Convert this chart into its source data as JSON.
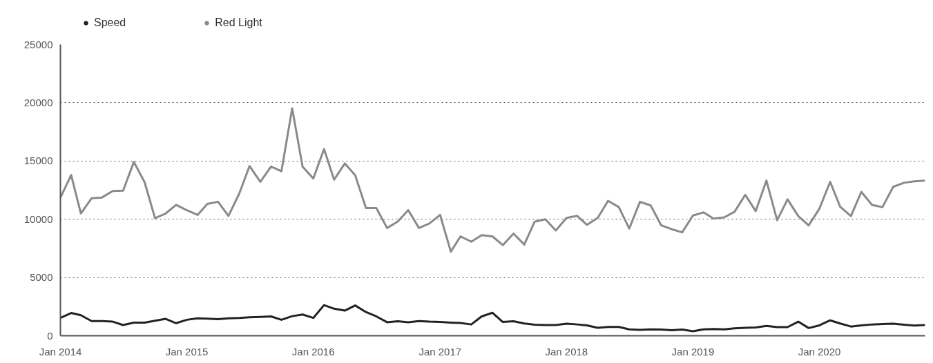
{
  "chart_data": {
    "type": "line",
    "legend": "top left",
    "grid": "y",
    "marker": "none",
    "line_style": "solid",
    "x": [
      "2014-01",
      "2014-02",
      "2014-03",
      "2014-04",
      "2014-05",
      "2014-06",
      "2014-07",
      "2014-08",
      "2014-09",
      "2014-10",
      "2014-11",
      "2014-12",
      "2015-01",
      "2015-02",
      "2015-03",
      "2015-04",
      "2015-05",
      "2015-06",
      "2015-07",
      "2015-08",
      "2015-09",
      "2015-10",
      "2015-11",
      "2015-12",
      "2016-01",
      "2016-02",
      "2016-03",
      "2016-04",
      "2016-05",
      "2016-06",
      "2016-07",
      "2016-08",
      "2016-09",
      "2016-10",
      "2016-11",
      "2016-12",
      "2017-01",
      "2017-02",
      "2017-03",
      "2017-04",
      "2017-05",
      "2017-06",
      "2017-07",
      "2017-08",
      "2017-09",
      "2017-10",
      "2017-11",
      "2017-12",
      "2018-01",
      "2018-02",
      "2018-03",
      "2018-04",
      "2018-05",
      "2018-06",
      "2018-07",
      "2018-08",
      "2018-09",
      "2018-10",
      "2018-11",
      "2018-12",
      "2019-01",
      "2019-02",
      "2019-03",
      "2019-04",
      "2019-05",
      "2019-06",
      "2019-07",
      "2019-08",
      "2019-09",
      "2019-10",
      "2019-11",
      "2019-12",
      "2020-01",
      "2020-02",
      "2020-03",
      "2020-04",
      "2020-05",
      "2020-06",
      "2020-07",
      "2020-08",
      "2020-09",
      "2020-10",
      "2020-11"
    ],
    "series": [
      {
        "name": "Speed",
        "color": "#222222",
        "values": [
          1530,
          1950,
          1760,
          1260,
          1260,
          1210,
          920,
          1130,
          1130,
          1290,
          1450,
          1080,
          1370,
          1500,
          1470,
          1420,
          1500,
          1530,
          1580,
          1610,
          1660,
          1370,
          1680,
          1820,
          1530,
          2630,
          2320,
          2160,
          2600,
          2030,
          1660,
          1160,
          1240,
          1160,
          1260,
          1210,
          1180,
          1130,
          1100,
          970,
          1660,
          1970,
          1180,
          1240,
          1050,
          950,
          920,
          920,
          1030,
          970,
          890,
          680,
          760,
          760,
          550,
          500,
          550,
          530,
          470,
          530,
          390,
          550,
          580,
          550,
          630,
          680,
          710,
          840,
          740,
          740,
          1210,
          660,
          890,
          1320,
          1050,
          790,
          890,
          970,
          1000,
          1030,
          950,
          870,
          920
        ]
      },
      {
        "name": "Red Light",
        "color": "#8a8a8c",
        "values": [
          11850,
          13800,
          10500,
          11800,
          11870,
          12430,
          12460,
          14920,
          13180,
          10100,
          10500,
          11230,
          10780,
          10370,
          11310,
          11500,
          10290,
          12190,
          14570,
          13210,
          14520,
          14120,
          19520,
          14520,
          13500,
          16020,
          13400,
          14790,
          13770,
          10960,
          10960,
          9250,
          9810,
          10780,
          9250,
          9630,
          10370,
          7220,
          8530,
          8070,
          8640,
          8530,
          7780,
          8770,
          7830,
          9790,
          10000,
          9040,
          10110,
          10290,
          9520,
          10110,
          11580,
          11040,
          9200,
          11500,
          11180,
          9490,
          9140,
          8880,
          10320,
          10590,
          10050,
          10160,
          10640,
          12090,
          10700,
          13320,
          9920,
          11710,
          10270,
          9470,
          10910,
          13210,
          11070,
          10270,
          12350,
          11230,
          11040,
          12780,
          13130,
          13260,
          13320
        ]
      }
    ],
    "xlim": [
      "2014-01",
      "2020-11"
    ],
    "xticks": [
      {
        "value": "2014-01",
        "label": "Jan 2014"
      },
      {
        "value": "2015-01",
        "label": "Jan 2015"
      },
      {
        "value": "2016-01",
        "label": "Jan 2016"
      },
      {
        "value": "2017-01",
        "label": "Jan 2017"
      },
      {
        "value": "2018-01",
        "label": "Jan 2018"
      },
      {
        "value": "2019-01",
        "label": "Jan 2019"
      },
      {
        "value": "2020-01",
        "label": "Jan 2020"
      }
    ],
    "ylim": [
      0,
      25000
    ],
    "yticks": [
      0,
      5000,
      10000,
      15000,
      20000,
      25000
    ]
  }
}
